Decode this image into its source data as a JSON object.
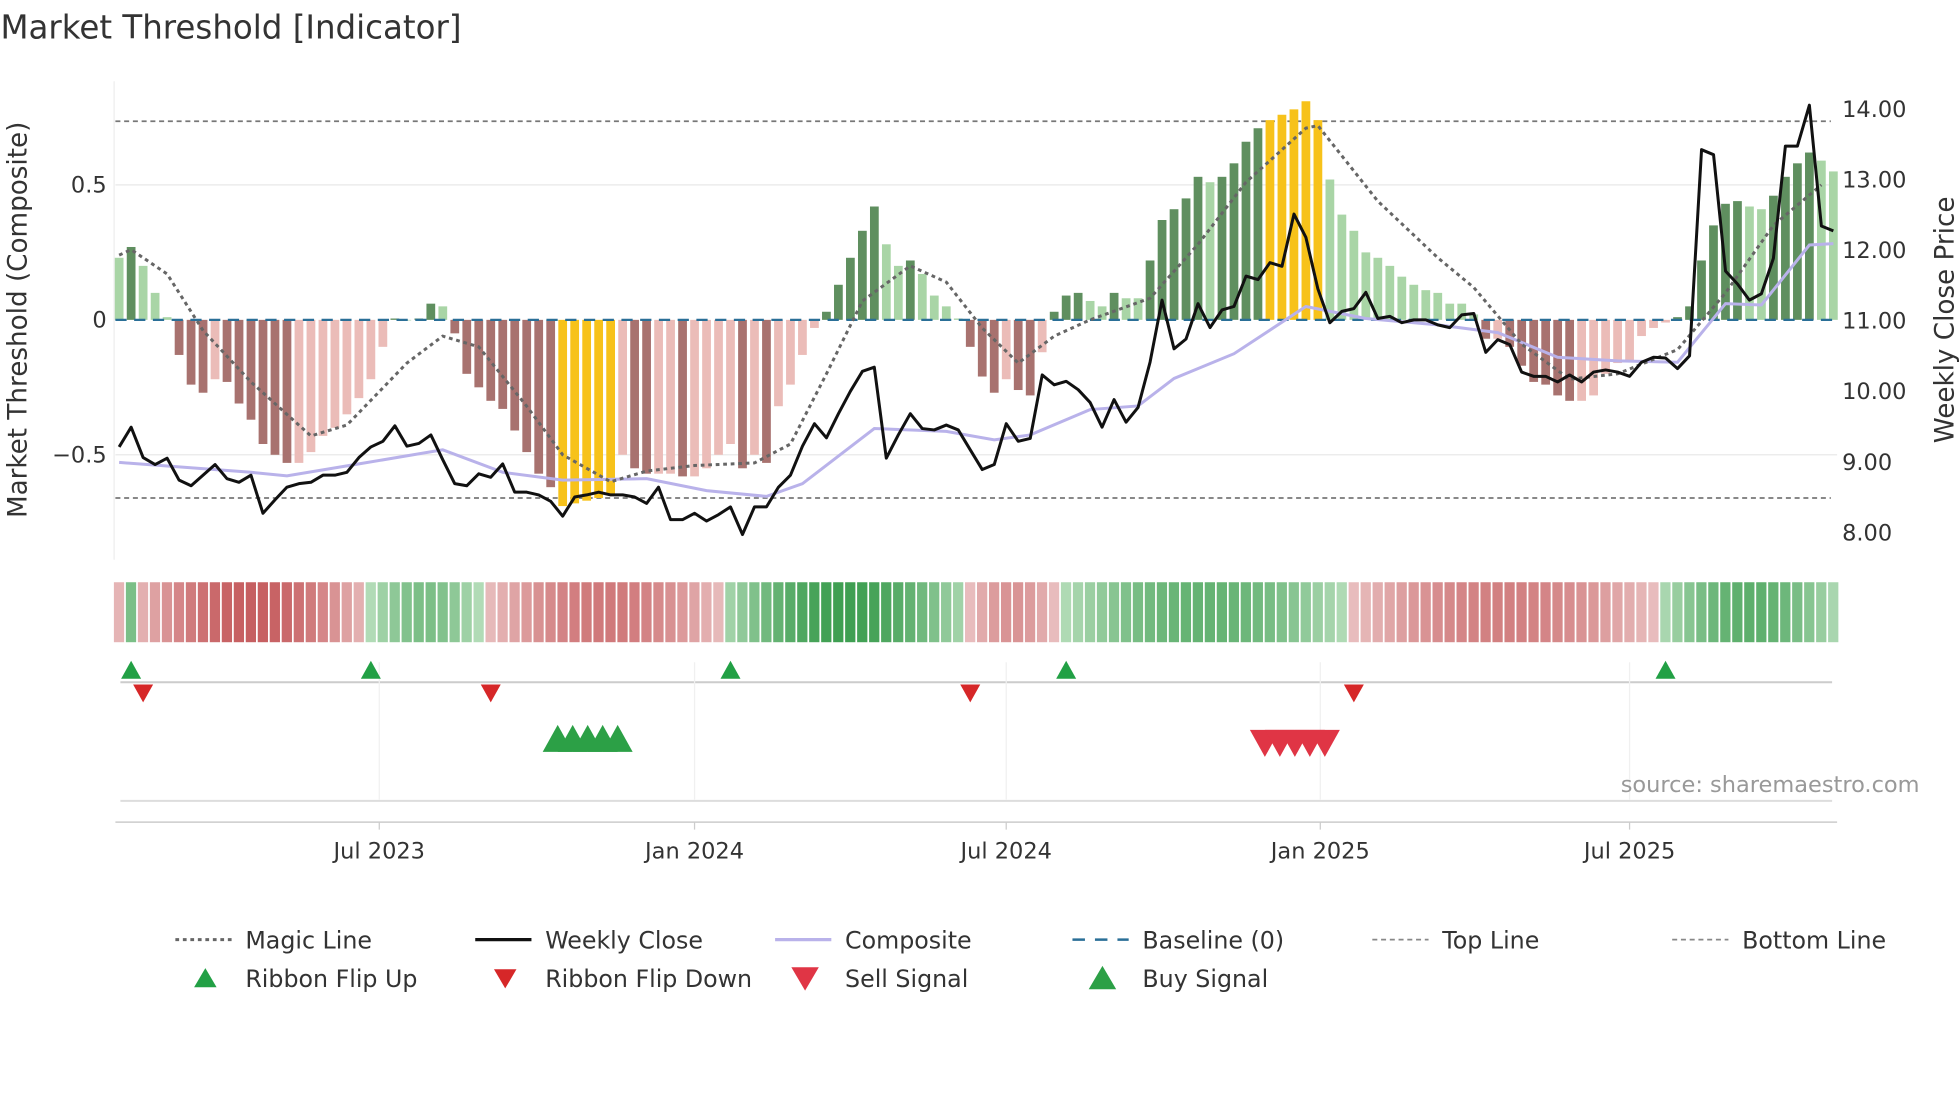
{
  "chart_data": {
    "type": "bar",
    "title": "Market Threshold [Indicator]",
    "ylabel": "Market Threshold (Composite)",
    "y2label": "Weekly Close Price",
    "source": "source: sharemaestro.com",
    "ylim": [
      -0.88,
      0.88
    ],
    "y2lim": [
      7.6,
      14.45
    ],
    "yticks": [
      {
        "v": 0.5,
        "label": "0.5"
      },
      {
        "v": 0,
        "label": "0"
      },
      {
        "v": -0.5,
        "label": "−0.5"
      }
    ],
    "y2ticks": [
      {
        "v": 14,
        "label": "14.00"
      },
      {
        "v": 13,
        "label": "13.00"
      },
      {
        "v": 12,
        "label": "12.00"
      },
      {
        "v": 11,
        "label": "11.00"
      },
      {
        "v": 10,
        "label": "10.00"
      },
      {
        "v": 9,
        "label": "9.00"
      },
      {
        "v": 8,
        "label": "8.00"
      }
    ],
    "xticks": [
      {
        "week": 21.7,
        "label": "Jul 2023"
      },
      {
        "week": 48.0,
        "label": "Jan 2024"
      },
      {
        "week": 74.0,
        "label": "Jul 2024"
      },
      {
        "week": 100.2,
        "label": "Jan 2025"
      },
      {
        "week": 126.0,
        "label": "Jul 2025"
      }
    ],
    "top_line": 0.736,
    "bottom_line": -0.66,
    "extreme_high": 0.72,
    "extreme_low": -0.64,
    "composite_bars": [
      0.23,
      0.27,
      0.2,
      0.1,
      0.01,
      -0.13,
      -0.24,
      -0.27,
      -0.22,
      -0.23,
      -0.31,
      -0.37,
      -0.46,
      -0.5,
      -0.53,
      -0.53,
      -0.49,
      -0.43,
      -0.4,
      -0.35,
      -0.29,
      -0.22,
      -0.1,
      0.005,
      0,
      0.005,
      0.06,
      0.05,
      -0.05,
      -0.2,
      -0.25,
      -0.3,
      -0.33,
      -0.41,
      -0.49,
      -0.57,
      -0.62,
      -0.69,
      -0.68,
      -0.67,
      -0.66,
      -0.65,
      -0.5,
      -0.55,
      -0.57,
      -0.57,
      -0.57,
      -0.58,
      -0.58,
      -0.55,
      -0.5,
      -0.46,
      -0.55,
      -0.5,
      -0.53,
      -0.32,
      -0.24,
      -0.13,
      -0.03,
      0.03,
      0.13,
      0.23,
      0.33,
      0.42,
      0.28,
      0.2,
      0.22,
      0.17,
      0.09,
      0.05,
      0.005,
      -0.1,
      -0.21,
      -0.27,
      -0.22,
      -0.26,
      -0.28,
      -0.12,
      0.03,
      0.09,
      0.1,
      0.07,
      0.05,
      0.1,
      0.08,
      0.08,
      0.22,
      0.37,
      0.41,
      0.45,
      0.53,
      0.51,
      0.53,
      0.58,
      0.66,
      0.71,
      0.74,
      0.76,
      0.78,
      0.81,
      0.74,
      0.52,
      0.39,
      0.33,
      0.25,
      0.23,
      0.2,
      0.16,
      0.13,
      0.11,
      0.1,
      0.06,
      0.06,
      0.02,
      -0.07,
      -0.07,
      -0.1,
      -0.17,
      -0.23,
      -0.24,
      -0.28,
      -0.3,
      -0.3,
      -0.28,
      -0.2,
      -0.16,
      -0.15,
      -0.06,
      -0.03,
      -0.01,
      0.01,
      0.05,
      0.22,
      0.35,
      0.43,
      0.44,
      0.42,
      0.41,
      0.46,
      0.53,
      0.58,
      0.62,
      0.59,
      0.55
    ],
    "weekly_close": [
      9.2,
      9.48,
      9.05,
      8.95,
      9.04,
      8.73,
      8.65,
      8.8,
      8.95,
      8.75,
      8.7,
      8.8,
      8.26,
      8.45,
      8.63,
      8.68,
      8.7,
      8.8,
      8.8,
      8.84,
      9.05,
      9.2,
      9.28,
      9.5,
      9.21,
      9.25,
      9.37,
      9.02,
      8.68,
      8.65,
      8.82,
      8.77,
      8.96,
      8.56,
      8.56,
      8.52,
      8.43,
      8.22,
      8.49,
      8.52,
      8.56,
      8.52,
      8.52,
      8.49,
      8.4,
      8.63,
      8.17,
      8.17,
      8.26,
      8.15,
      8.24,
      8.35,
      7.96,
      8.35,
      8.35,
      8.63,
      8.8,
      9.21,
      9.53,
      9.33,
      9.67,
      9.99,
      10.27,
      10.33,
      9.04,
      9.37,
      9.67,
      9.46,
      9.44,
      9.51,
      9.44,
      9.16,
      8.88,
      8.95,
      9.53,
      9.28,
      9.32,
      10.22,
      10.08,
      10.13,
      10.01,
      9.83,
      9.48,
      9.87,
      9.55,
      9.76,
      10.4,
      11.28,
      10.59,
      10.73,
      11.23,
      10.89,
      11.14,
      11.19,
      11.62,
      11.57,
      11.81,
      11.76,
      12.5,
      12.17,
      11.44,
      10.96,
      11.12,
      11.16,
      11.39,
      11.02,
      11.05,
      10.96,
      11.0,
      11.0,
      10.93,
      10.89,
      11.07,
      11.09,
      10.54,
      10.72,
      10.65,
      10.26,
      10.2,
      10.2,
      10.12,
      10.22,
      10.12,
      10.26,
      10.29,
      10.26,
      10.2,
      10.4,
      10.47,
      10.46,
      10.31,
      10.49,
      13.41,
      13.34,
      11.69,
      11.51,
      11.28,
      11.37,
      11.87,
      13.46,
      13.46,
      14.04,
      12.33,
      12.26
    ],
    "composite_line": [
      [
        0,
        8.98
      ],
      [
        11,
        8.84
      ],
      [
        14,
        8.79
      ],
      [
        20,
        8.96
      ],
      [
        27,
        9.16
      ],
      [
        32,
        8.84
      ],
      [
        37,
        8.73
      ],
      [
        44,
        8.75
      ],
      [
        49,
        8.58
      ],
      [
        54,
        8.5
      ],
      [
        57,
        8.68
      ],
      [
        63,
        9.46
      ],
      [
        69,
        9.42
      ],
      [
        73,
        9.3
      ],
      [
        76,
        9.37
      ],
      [
        81,
        9.73
      ],
      [
        85,
        9.78
      ],
      [
        88,
        10.17
      ],
      [
        93,
        10.52
      ],
      [
        99,
        11.19
      ],
      [
        104,
        11.02
      ],
      [
        110,
        10.93
      ],
      [
        115,
        10.82
      ],
      [
        120,
        10.47
      ],
      [
        125,
        10.42
      ],
      [
        130,
        10.4
      ],
      [
        134,
        11.23
      ],
      [
        137,
        11.21
      ],
      [
        141,
        12.06
      ],
      [
        143,
        12.08
      ]
    ],
    "magic_line": [
      [
        0,
        0.24
      ],
      [
        1,
        0.26
      ],
      [
        4,
        0.17
      ],
      [
        7,
        -0.04
      ],
      [
        11,
        -0.23
      ],
      [
        16,
        -0.43
      ],
      [
        19,
        -0.39
      ],
      [
        24,
        -0.16
      ],
      [
        27,
        -0.06
      ],
      [
        30,
        -0.1
      ],
      [
        34,
        -0.32
      ],
      [
        37,
        -0.5
      ],
      [
        41,
        -0.6
      ],
      [
        44,
        -0.56
      ],
      [
        48,
        -0.54
      ],
      [
        53,
        -0.53
      ],
      [
        56,
        -0.46
      ],
      [
        59,
        -0.2
      ],
      [
        62,
        0.07
      ],
      [
        66,
        0.2
      ],
      [
        69,
        0.14
      ],
      [
        72,
        -0.03
      ],
      [
        75,
        -0.16
      ],
      [
        78,
        -0.06
      ],
      [
        81,
        0
      ],
      [
        86,
        0.08
      ],
      [
        90,
        0.28
      ],
      [
        94,
        0.51
      ],
      [
        99,
        0.71
      ],
      [
        100,
        0.72
      ],
      [
        105,
        0.44
      ],
      [
        110,
        0.23
      ],
      [
        113,
        0.12
      ],
      [
        117,
        -0.09
      ],
      [
        121,
        -0.22
      ],
      [
        125,
        -0.2
      ],
      [
        130,
        -0.11
      ],
      [
        134,
        0.1
      ],
      [
        138,
        0.35
      ],
      [
        142,
        0.5
      ]
    ],
    "ribbon": [
      {
        "trend": "bear",
        "from": 0,
        "to": 0,
        "peak": 0.3
      },
      {
        "trend": "bull",
        "from": 1,
        "to": 1,
        "peak": 0.6
      },
      {
        "trend": "bear",
        "from": 2,
        "to": 20,
        "peak": 0.95
      },
      {
        "trend": "bull",
        "from": 21,
        "to": 30,
        "peak": 0.6
      },
      {
        "trend": "bear",
        "from": 31,
        "to": 50,
        "peak": 0.75
      },
      {
        "trend": "bull",
        "from": 51,
        "to": 70,
        "peak": 1.0
      },
      {
        "trend": "bear",
        "from": 71,
        "to": 78,
        "peak": 0.55
      },
      {
        "trend": "bull",
        "from": 79,
        "to": 102,
        "peak": 0.75
      },
      {
        "trend": "bear",
        "from": 103,
        "to": 128,
        "peak": 0.7
      },
      {
        "trend": "bull",
        "from": 129,
        "to": 143,
        "peak": 0.8
      }
    ],
    "ribbon_flip_up": [
      1,
      21,
      51,
      79,
      129
    ],
    "ribbon_flip_down": [
      2,
      31,
      71,
      103
    ],
    "buy_signal": [
      37,
      38,
      39,
      40,
      41
    ],
    "sell_signal": [
      96,
      97,
      98,
      99,
      100
    ],
    "colors": {
      "bull_strong": "#5f8f5f",
      "bull_weak": "#a9d5a6",
      "bear_strong": "#a8726f",
      "bear_weak": "#ebbcb8",
      "extreme": "#f7c21a",
      "close": "#111111",
      "composite": "#b9b2ea",
      "magic": "#666666",
      "baseline": "#2a6f97",
      "flip_up": "#22a045",
      "flip_down": "#d62728",
      "sell": "#e03545",
      "buy": "#2ca046"
    },
    "legend": [
      {
        "key": "magic",
        "label": "Magic Line"
      },
      {
        "key": "close",
        "label": "Weekly Close"
      },
      {
        "key": "composite",
        "label": "Composite"
      },
      {
        "key": "baseline",
        "label": "Baseline (0)"
      },
      {
        "key": "top",
        "label": "Top Line"
      },
      {
        "key": "bottom",
        "label": "Bottom Line"
      },
      {
        "key": "flip_up",
        "label": "Ribbon Flip Up"
      },
      {
        "key": "flip_down",
        "label": "Ribbon Flip Down"
      },
      {
        "key": "sell",
        "label": "Sell Signal"
      },
      {
        "key": "buy",
        "label": "Buy Signal"
      }
    ]
  }
}
